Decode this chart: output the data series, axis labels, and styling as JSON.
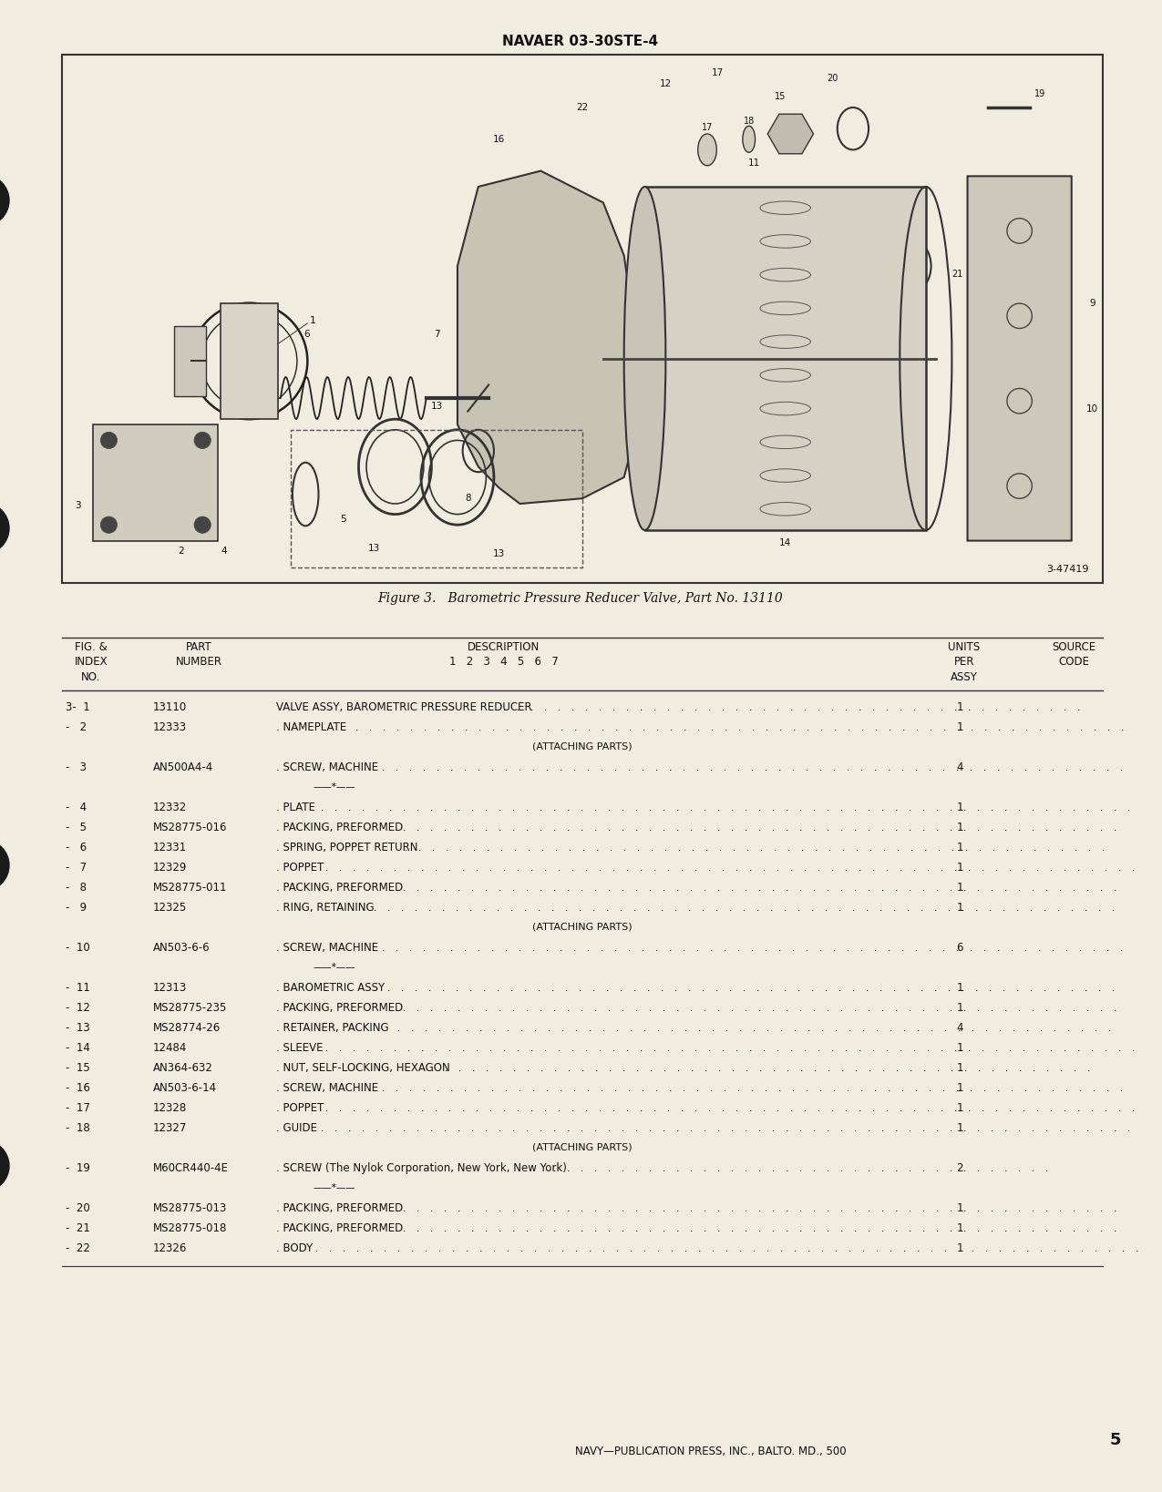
{
  "bg_color": "#f0ece0",
  "header_text": "NAVAER 03-30STE-4",
  "footer_text": "NAVY—PUBLICATION PRESS, INC., BALTO. MD., 500",
  "page_number": "5",
  "figure_caption": "Figure 3.   Barometric Pressure Reducer Valve, Part No. 13110",
  "figure_id": "3-47419",
  "table_rows": [
    [
      "3-  1",
      "13110",
      "VALVE ASSY, BAROMETRIC PRESSURE REDUCER",
      "1",
      ""
    ],
    [
      "-   2",
      "12333",
      ". NAMEPLATE",
      "1",
      ""
    ],
    [
      "",
      "",
      "(ATTACHING PARTS)",
      "",
      ""
    ],
    [
      "-   3",
      "AN500A4-4",
      ". SCREW, MACHINE",
      "4",
      ""
    ],
    [
      "",
      "",
      "*",
      "",
      ""
    ],
    [
      "-   4",
      "12332",
      ". PLATE",
      "1",
      ""
    ],
    [
      "-   5",
      "MS28775-016",
      ". PACKING, PREFORMED",
      "1",
      ""
    ],
    [
      "-   6",
      "12331",
      ". SPRING, POPPET RETURN",
      "1",
      ""
    ],
    [
      "-   7",
      "12329",
      ". POPPET",
      "1",
      ""
    ],
    [
      "-   8",
      "MS28775-011",
      ". PACKING, PREFORMED",
      "1",
      ""
    ],
    [
      "-   9",
      "12325",
      ". RING, RETAINING",
      "1",
      ""
    ],
    [
      "",
      "",
      "(ATTACHING PARTS)",
      "",
      ""
    ],
    [
      "-  10",
      "AN503-6-6",
      ". SCREW, MACHINE",
      "6",
      ""
    ],
    [
      "",
      "",
      "*",
      "",
      ""
    ],
    [
      "-  11",
      "12313",
      ". BAROMETRIC ASSY",
      "1",
      ""
    ],
    [
      "-  12",
      "MS28775-235",
      ". PACKING, PREFORMED",
      "1",
      ""
    ],
    [
      "-  13",
      "MS28774-26",
      ". RETAINER, PACKING",
      "4",
      ""
    ],
    [
      "-  14",
      "12484",
      ". SLEEVE",
      "1",
      ""
    ],
    [
      "-  15",
      "AN364-632",
      ". NUT, SELF-LOCKING, HEXAGON",
      "1",
      ""
    ],
    [
      "-  16",
      "AN503-6-14",
      ". SCREW, MACHINE",
      "1",
      ""
    ],
    [
      "-  17",
      "12328",
      ". POPPET",
      "1",
      ""
    ],
    [
      "-  18",
      "12327",
      ". GUIDE",
      "1",
      ""
    ],
    [
      "",
      "",
      "(ATTACHING PARTS)",
      "",
      ""
    ],
    [
      "-  19",
      "M60CR440-4E",
      ". SCREW (The Nylok Corporation, New York, New York)",
      "2",
      ""
    ],
    [
      "",
      "",
      "*",
      "",
      ""
    ],
    [
      "-  20",
      "MS28775-013",
      ". PACKING, PREFORMED",
      "1",
      ""
    ],
    [
      "-  21",
      "MS28775-018",
      ". PACKING, PREFORMED",
      "1",
      ""
    ],
    [
      "-  22",
      "12326",
      ". BODY",
      "1",
      ""
    ]
  ]
}
